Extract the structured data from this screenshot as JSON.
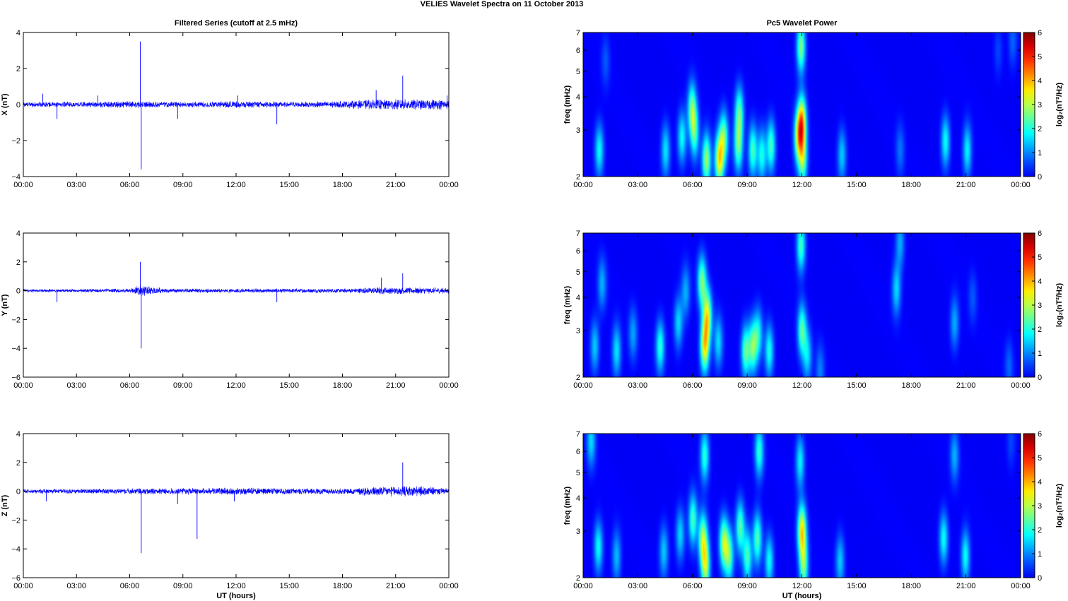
{
  "figure": {
    "title": "VELIES Wavelet Spectra on 11 October   2013"
  },
  "colors": {
    "trace": "#0000ff",
    "axis": "#000000",
    "background": "#ffffff",
    "colormap": "jet"
  },
  "chart_data": [
    {
      "type": "line",
      "panel": "x-series",
      "title": "Filtered Series (cutoff at 2.5 mHz)",
      "xlabel": "",
      "ylabel": "X (nT)",
      "xlim": [
        0,
        24
      ],
      "ylim": [
        -4,
        4
      ],
      "x_ticks": [
        "00:00",
        "03:00",
        "06:00",
        "09:00",
        "12:00",
        "15:00",
        "18:00",
        "21:00",
        "00:00"
      ],
      "y_ticks": [
        -4,
        -2,
        0,
        2,
        4
      ],
      "noise_envelope": [
        [
          0,
          0.15
        ],
        [
          3,
          0.15
        ],
        [
          6,
          0.2
        ],
        [
          9,
          0.15
        ],
        [
          12,
          0.2
        ],
        [
          15,
          0.15
        ],
        [
          18,
          0.2
        ],
        [
          20,
          0.3
        ],
        [
          22,
          0.3
        ],
        [
          24,
          0.3
        ]
      ],
      "spikes": [
        [
          1.1,
          0.6
        ],
        [
          1.9,
          -0.8
        ],
        [
          4.2,
          0.5
        ],
        [
          6.6,
          3.5
        ],
        [
          6.65,
          -3.6
        ],
        [
          8.7,
          -0.8
        ],
        [
          12.1,
          0.5
        ],
        [
          14.3,
          -1.1
        ],
        [
          19.9,
          0.8
        ],
        [
          21.4,
          1.6
        ],
        [
          23.9,
          0.5
        ]
      ]
    },
    {
      "type": "line",
      "panel": "y-series",
      "title": "",
      "xlabel": "",
      "ylabel": "Y (nT)",
      "xlim": [
        0,
        24
      ],
      "ylim": [
        -6,
        4
      ],
      "x_ticks": [
        "00:00",
        "03:00",
        "06:00",
        "09:00",
        "12:00",
        "15:00",
        "18:00",
        "21:00",
        "00:00"
      ],
      "y_ticks": [
        -6,
        -4,
        -2,
        0,
        2,
        4
      ],
      "noise_envelope": [
        [
          0,
          0.12
        ],
        [
          3,
          0.12
        ],
        [
          6,
          0.15
        ],
        [
          6.6,
          0.4
        ],
        [
          8,
          0.15
        ],
        [
          12,
          0.15
        ],
        [
          18,
          0.15
        ],
        [
          20,
          0.25
        ],
        [
          24,
          0.2
        ]
      ],
      "spikes": [
        [
          1.9,
          -0.8
        ],
        [
          6.6,
          2.0
        ],
        [
          6.65,
          -4.0
        ],
        [
          14.3,
          -0.8
        ],
        [
          20.2,
          0.9
        ],
        [
          21.4,
          1.2
        ]
      ]
    },
    {
      "type": "line",
      "panel": "z-series",
      "title": "",
      "xlabel": "UT (hours)",
      "ylabel": "Z (nT)",
      "xlim": [
        0,
        24
      ],
      "ylim": [
        -6,
        4
      ],
      "x_ticks": [
        "00:00",
        "03:00",
        "06:00",
        "09:00",
        "12:00",
        "15:00",
        "18:00",
        "21:00",
        "00:00"
      ],
      "y_ticks": [
        -6,
        -4,
        -2,
        0,
        2,
        4
      ],
      "noise_envelope": [
        [
          0,
          0.15
        ],
        [
          6,
          0.2
        ],
        [
          12,
          0.25
        ],
        [
          18,
          0.2
        ],
        [
          20,
          0.35
        ],
        [
          22,
          0.4
        ],
        [
          24,
          0.2
        ]
      ],
      "spikes": [
        [
          1.3,
          -0.7
        ],
        [
          6.65,
          -4.3
        ],
        [
          8.7,
          -0.9
        ],
        [
          9.8,
          -3.3
        ],
        [
          11.9,
          -0.7
        ],
        [
          21.4,
          2.0
        ]
      ]
    },
    {
      "type": "heatmap",
      "panel": "x-spectrum",
      "title": "Pc5 Wavelet Power",
      "xlabel": "",
      "ylabel": "freq (mHz)",
      "xlim": [
        0,
        24
      ],
      "ylim": [
        2,
        7
      ],
      "yscale": "log",
      "x_ticks": [
        "00:00",
        "03:00",
        "06:00",
        "09:00",
        "12:00",
        "15:00",
        "18:00",
        "21:00",
        "00:00"
      ],
      "y_ticks": [
        2,
        3,
        4,
        5,
        6,
        7
      ],
      "colorbar": {
        "label": "log₂(nT²/Hz)",
        "range": [
          0,
          6
        ],
        "ticks": [
          0,
          1,
          2,
          3,
          4,
          5,
          6
        ]
      },
      "blobs": [
        {
          "t": 0.85,
          "f": 2.5,
          "p": 1.8
        },
        {
          "t": 1.2,
          "f": 5.5,
          "p": 0.6
        },
        {
          "t": 4.5,
          "f": 2.5,
          "p": 1.6
        },
        {
          "t": 5.4,
          "f": 2.8,
          "p": 1.8
        },
        {
          "t": 5.95,
          "f": 3.6,
          "p": 2.4
        },
        {
          "t": 6.1,
          "f": 2.9,
          "p": 2.0
        },
        {
          "t": 6.75,
          "f": 2.3,
          "p": 2.8
        },
        {
          "t": 7.45,
          "f": 2.3,
          "p": 3.4
        },
        {
          "t": 7.7,
          "f": 2.8,
          "p": 2.4
        },
        {
          "t": 8.5,
          "f": 2.6,
          "p": 2.3
        },
        {
          "t": 8.55,
          "f": 3.5,
          "p": 2.2
        },
        {
          "t": 9.3,
          "f": 2.5,
          "p": 2.2
        },
        {
          "t": 9.8,
          "f": 2.4,
          "p": 1.9
        },
        {
          "t": 10.3,
          "f": 2.6,
          "p": 2.2
        },
        {
          "t": 11.8,
          "f": 2.8,
          "p": 2.7
        },
        {
          "t": 12.0,
          "f": 3.2,
          "p": 3.8
        },
        {
          "t": 11.95,
          "f": 6.2,
          "p": 2.6
        },
        {
          "t": 12.05,
          "f": 2.3,
          "p": 2.4
        },
        {
          "t": 14.2,
          "f": 2.4,
          "p": 1.4
        },
        {
          "t": 17.4,
          "f": 2.5,
          "p": 0.8
        },
        {
          "t": 19.9,
          "f": 2.7,
          "p": 1.8
        },
        {
          "t": 21.1,
          "f": 2.5,
          "p": 1.7
        },
        {
          "t": 22.8,
          "f": 6.0,
          "p": 0.5
        },
        {
          "t": 23.6,
          "f": 6.5,
          "p": 0.7
        }
      ]
    },
    {
      "type": "heatmap",
      "panel": "y-spectrum",
      "title": "",
      "xlabel": "",
      "ylabel": "freq (mHz)",
      "xlim": [
        0,
        24
      ],
      "ylim": [
        2,
        7
      ],
      "yscale": "log",
      "x_ticks": [
        "00:00",
        "03:00",
        "06:00",
        "09:00",
        "12:00",
        "15:00",
        "18:00",
        "21:00",
        "00:00"
      ],
      "y_ticks": [
        2,
        3,
        4,
        5,
        6,
        7
      ],
      "colorbar": {
        "label": "log₂(nT²/Hz)",
        "range": [
          0,
          6
        ],
        "ticks": [
          0,
          1,
          2,
          3,
          4,
          5,
          6
        ]
      },
      "blobs": [
        {
          "t": 0.6,
          "f": 2.6,
          "p": 1.4
        },
        {
          "t": 1.0,
          "f": 4.5,
          "p": 1.2
        },
        {
          "t": 1.8,
          "f": 2.5,
          "p": 1.6
        },
        {
          "t": 2.7,
          "f": 2.9,
          "p": 1.1
        },
        {
          "t": 4.2,
          "f": 2.6,
          "p": 2.0
        },
        {
          "t": 5.2,
          "f": 3.2,
          "p": 1.5
        },
        {
          "t": 5.6,
          "f": 4.2,
          "p": 1.2
        },
        {
          "t": 6.5,
          "f": 4.6,
          "p": 2.5
        },
        {
          "t": 6.65,
          "f": 2.6,
          "p": 3.4
        },
        {
          "t": 6.8,
          "f": 3.4,
          "p": 3.1
        },
        {
          "t": 7.4,
          "f": 2.7,
          "p": 1.5
        },
        {
          "t": 8.9,
          "f": 2.5,
          "p": 2.3
        },
        {
          "t": 9.3,
          "f": 2.6,
          "p": 2.4
        },
        {
          "t": 9.6,
          "f": 2.9,
          "p": 1.7
        },
        {
          "t": 10.2,
          "f": 2.5,
          "p": 1.9
        },
        {
          "t": 12.0,
          "f": 3.0,
          "p": 2.3
        },
        {
          "t": 11.95,
          "f": 6.3,
          "p": 2.2
        },
        {
          "t": 12.3,
          "f": 2.4,
          "p": 1.5
        },
        {
          "t": 13.0,
          "f": 2.1,
          "p": 0.9
        },
        {
          "t": 17.2,
          "f": 4.3,
          "p": 1.5
        },
        {
          "t": 17.4,
          "f": 6.5,
          "p": 1.2
        },
        {
          "t": 20.4,
          "f": 3.2,
          "p": 1.2
        },
        {
          "t": 21.4,
          "f": 4.0,
          "p": 0.6
        },
        {
          "t": 23.4,
          "f": 2.2,
          "p": 0.7
        }
      ]
    },
    {
      "type": "heatmap",
      "panel": "z-spectrum",
      "title": "",
      "xlabel": "UT (hours)",
      "ylabel": "freq (mHz)",
      "xlim": [
        0,
        24
      ],
      "ylim": [
        2,
        7
      ],
      "yscale": "log",
      "x_ticks": [
        "00:00",
        "03:00",
        "06:00",
        "09:00",
        "12:00",
        "15:00",
        "18:00",
        "21:00",
        "00:00"
      ],
      "y_ticks": [
        2,
        3,
        4,
        5,
        6,
        7
      ],
      "colorbar": {
        "label": "log₂(nT²/Hz)",
        "range": [
          0,
          6
        ],
        "ticks": [
          0,
          1,
          2,
          3,
          4,
          5,
          6
        ]
      },
      "blobs": [
        {
          "t": 0.4,
          "f": 6.6,
          "p": 1.5
        },
        {
          "t": 0.8,
          "f": 2.6,
          "p": 1.8
        },
        {
          "t": 1.8,
          "f": 2.4,
          "p": 1.3
        },
        {
          "t": 4.4,
          "f": 2.5,
          "p": 1.4
        },
        {
          "t": 5.3,
          "f": 2.9,
          "p": 1.5
        },
        {
          "t": 6.0,
          "f": 3.3,
          "p": 2.2
        },
        {
          "t": 6.55,
          "f": 2.8,
          "p": 2.7
        },
        {
          "t": 6.65,
          "f": 5.8,
          "p": 2.0
        },
        {
          "t": 6.7,
          "f": 2.2,
          "p": 2.8
        },
        {
          "t": 7.7,
          "f": 2.7,
          "p": 2.8
        },
        {
          "t": 8.0,
          "f": 2.4,
          "p": 2.2
        },
        {
          "t": 8.6,
          "f": 3.1,
          "p": 2.3
        },
        {
          "t": 9.0,
          "f": 2.4,
          "p": 2.2
        },
        {
          "t": 9.55,
          "f": 2.8,
          "p": 2.3
        },
        {
          "t": 9.65,
          "f": 6.0,
          "p": 2.0
        },
        {
          "t": 10.2,
          "f": 2.3,
          "p": 1.8
        },
        {
          "t": 12.0,
          "f": 3.0,
          "p": 3.5
        },
        {
          "t": 11.9,
          "f": 5.5,
          "p": 1.7
        },
        {
          "t": 12.1,
          "f": 2.2,
          "p": 2.4
        },
        {
          "t": 14.1,
          "f": 2.3,
          "p": 1.4
        },
        {
          "t": 19.8,
          "f": 2.8,
          "p": 1.8
        },
        {
          "t": 20.4,
          "f": 5.8,
          "p": 1.2
        },
        {
          "t": 21.0,
          "f": 2.4,
          "p": 1.8
        },
        {
          "t": 23.5,
          "f": 6.5,
          "p": 0.5
        }
      ]
    }
  ]
}
